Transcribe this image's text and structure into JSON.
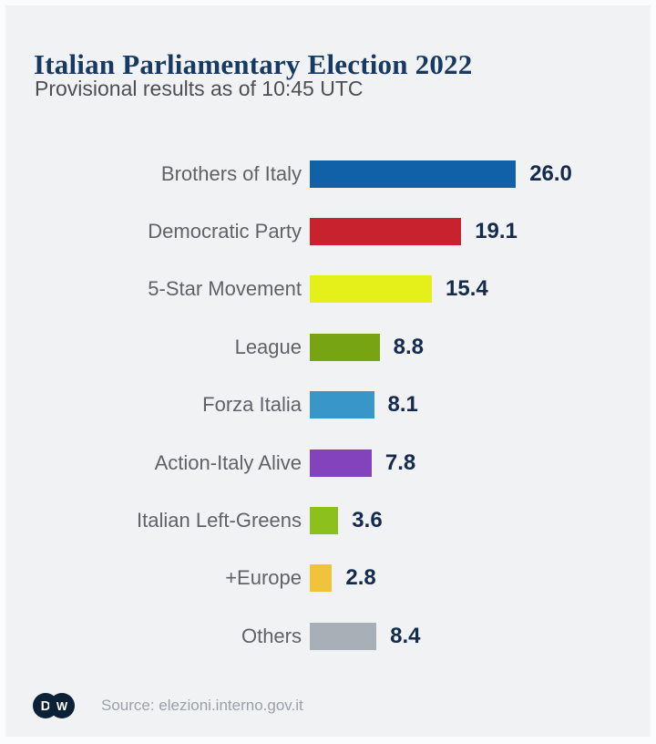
{
  "header": {
    "title": "Italian Parliamentary Election 2022",
    "subtitle": "Provisional results as of 10:45 UTC"
  },
  "chart_data": {
    "type": "bar",
    "orientation": "horizontal",
    "title": "Italian Parliamentary Election 2022",
    "subtitle": "Provisional results as of 10:45 UTC",
    "unit": "percent of vote",
    "xlim": [
      0,
      26
    ],
    "grid": false,
    "axes_shown": false,
    "value_label_position": "end-of-bar",
    "categories": [
      "Brothers of Italy",
      "Democratic Party",
      "5-Star Movement",
      "League",
      "Forza Italia",
      "Action-Italy Alive",
      "Italian Left-Greens",
      "+Europe",
      "Others"
    ],
    "values": [
      26.0,
      19.1,
      15.4,
      8.8,
      8.1,
      7.8,
      3.6,
      2.8,
      8.4
    ],
    "value_labels": [
      "26.0",
      "19.1",
      "15.4",
      "8.8",
      "8.1",
      "7.8",
      "3.6",
      "2.8",
      "8.4"
    ],
    "bar_colors": [
      "#1161a8",
      "#c9222f",
      "#e5ef1a",
      "#76a413",
      "#3897c8",
      "#8343bd",
      "#8cc11d",
      "#f0c33c",
      "#a9afb6"
    ]
  },
  "footer": {
    "source": "Source: elezioni.interno.gov.it",
    "logo_letters": [
      "D",
      "W"
    ]
  },
  "colors": {
    "background": "#f0f2f4",
    "frame": "#fbfcfd",
    "title": "#173a63",
    "subtitle": "#4c5055",
    "category_label": "#5f6368",
    "value_label": "#152b4d",
    "logo": "#0d2136",
    "source_text": "#9aa1a8"
  }
}
